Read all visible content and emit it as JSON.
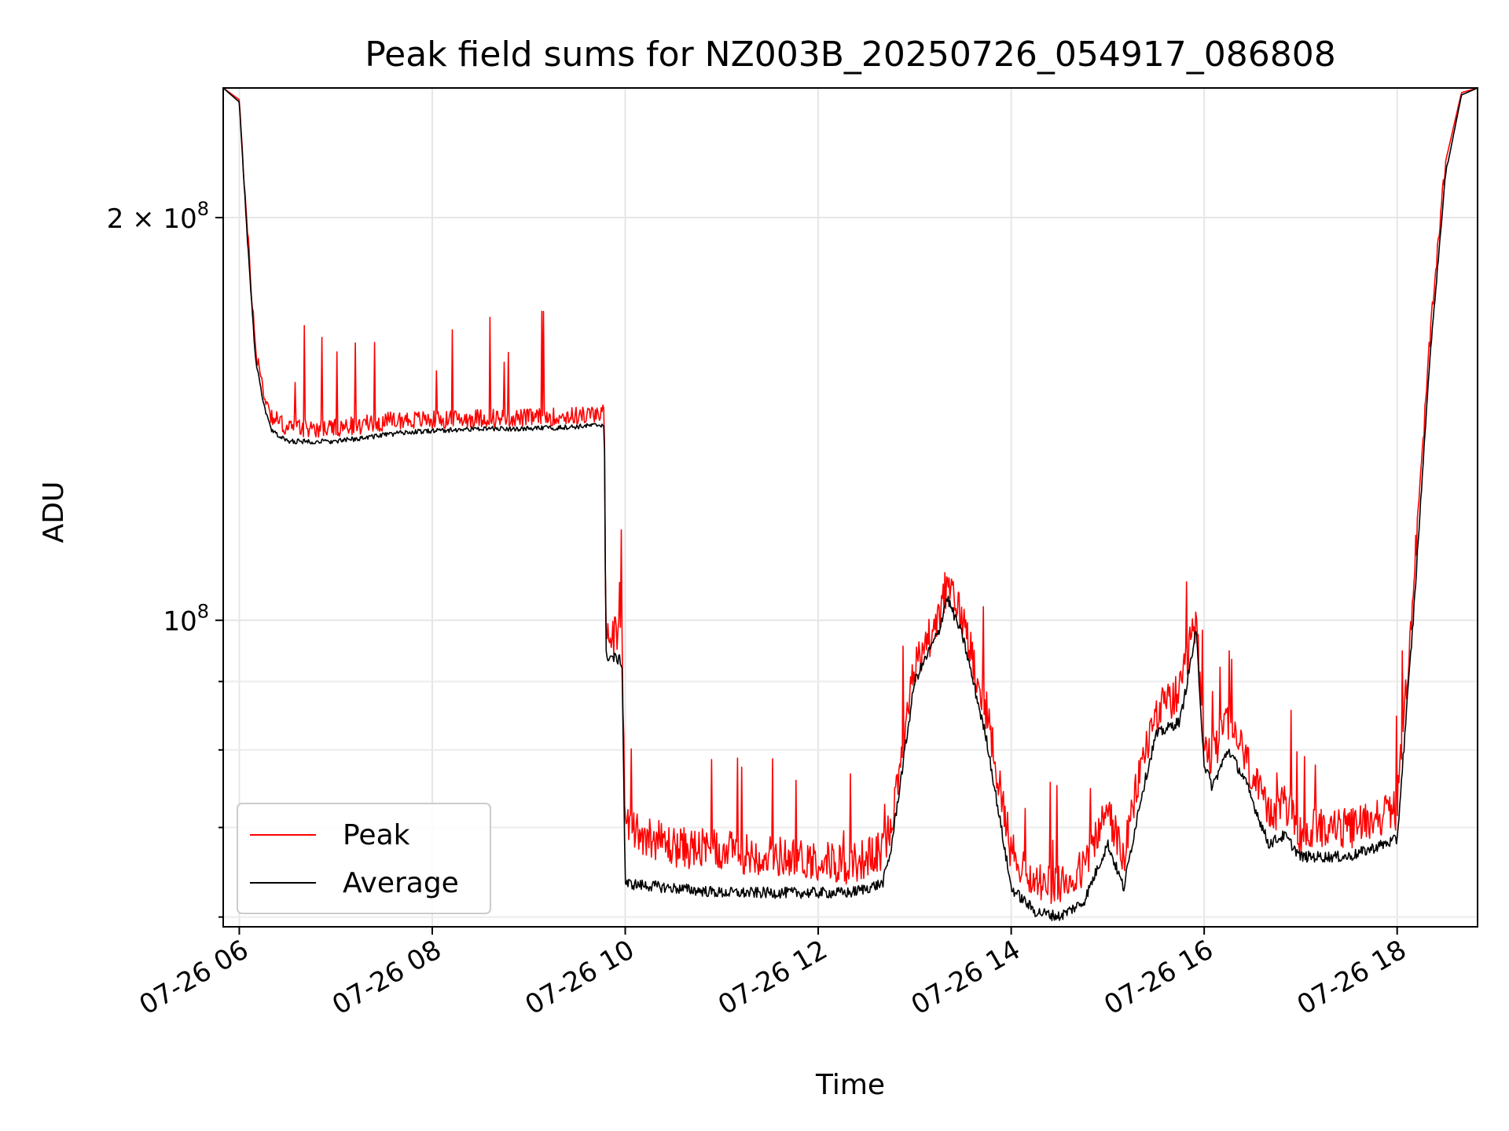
{
  "chart_data": {
    "type": "line",
    "title": "Peak field sums for NZ003B_20250726_054917_086808",
    "xlabel": "Time",
    "ylabel": "ADU",
    "y_scale": "log",
    "ylim": [
      59000000,
      250000000
    ],
    "xlim": [
      "2025-07-26T05:50",
      "2025-07-26T18:50"
    ],
    "grid": true,
    "legend_position": "lower-left",
    "x_ticks": [
      {
        "t": "2025-07-26T06:00",
        "label": "07-26 06"
      },
      {
        "t": "2025-07-26T08:00",
        "label": "07-26 08"
      },
      {
        "t": "2025-07-26T10:00",
        "label": "07-26 10"
      },
      {
        "t": "2025-07-26T12:00",
        "label": "07-26 12"
      },
      {
        "t": "2025-07-26T14:00",
        "label": "07-26 14"
      },
      {
        "t": "2025-07-26T16:00",
        "label": "07-26 16"
      },
      {
        "t": "2025-07-26T18:00",
        "label": "07-26 18"
      }
    ],
    "y_major_ticks": [
      {
        "value": 100000000,
        "base": "10",
        "exp": "8",
        "prefix": ""
      },
      {
        "value": 200000000,
        "base": "10",
        "exp": "8",
        "prefix": "2 × "
      }
    ],
    "y_minor_ticks": [
      60000000,
      70000000,
      80000000,
      90000000
    ],
    "series": [
      {
        "name": "Peak",
        "color": "#ff0000",
        "x": [
          "2025-07-26T05:50",
          "2025-07-26T06:00",
          "2025-07-26T06:05",
          "2025-07-26T06:10",
          "2025-07-26T06:15",
          "2025-07-26T06:20",
          "2025-07-26T06:30",
          "2025-07-26T07:00",
          "2025-07-26T07:20",
          "2025-07-26T07:40",
          "2025-07-26T08:00",
          "2025-07-26T08:30",
          "2025-07-26T09:00",
          "2025-07-26T09:30",
          "2025-07-26T09:47",
          "2025-07-26T09:48",
          "2025-07-26T09:55",
          "2025-07-26T09:58",
          "2025-07-26T10:00",
          "2025-07-26T10:30",
          "2025-07-26T11:00",
          "2025-07-26T11:30",
          "2025-07-26T12:00",
          "2025-07-26T12:20",
          "2025-07-26T12:40",
          "2025-07-26T12:45",
          "2025-07-26T12:50",
          "2025-07-26T13:00",
          "2025-07-26T13:15",
          "2025-07-26T13:20",
          "2025-07-26T13:30",
          "2025-07-26T13:45",
          "2025-07-26T14:00",
          "2025-07-26T14:15",
          "2025-07-26T14:30",
          "2025-07-26T14:45",
          "2025-07-26T15:00",
          "2025-07-26T15:10",
          "2025-07-26T15:20",
          "2025-07-26T15:30",
          "2025-07-26T15:45",
          "2025-07-26T15:55",
          "2025-07-26T16:00",
          "2025-07-26T16:05",
          "2025-07-26T16:15",
          "2025-07-26T16:25",
          "2025-07-26T16:40",
          "2025-07-26T16:50",
          "2025-07-26T17:00",
          "2025-07-26T17:15",
          "2025-07-26T17:30",
          "2025-07-26T17:45",
          "2025-07-26T18:00",
          "2025-07-26T18:10",
          "2025-07-26T18:20",
          "2025-07-26T18:30",
          "2025-07-26T18:40",
          "2025-07-26T18:50"
        ],
        "y": [
          250000000,
          245000000,
          195000000,
          160000000,
          148000000,
          142000000,
          139000000,
          139000000,
          140000000,
          141000000,
          141000000,
          141500000,
          141500000,
          142000000,
          142500000,
          98000000,
          97000000,
          96000000,
          70000000,
          67500000,
          67000000,
          66500000,
          66000000,
          65500000,
          67000000,
          70000000,
          77000000,
          92000000,
          100000000,
          106000000,
          100000000,
          85000000,
          67000000,
          63500000,
          63000000,
          65000000,
          72000000,
          66000000,
          77000000,
          85000000,
          88000000,
          100000000,
          80000000,
          79000000,
          84000000,
          79000000,
          71000000,
          73000000,
          69000000,
          70000000,
          69500000,
          71000000,
          72000000,
          105000000,
          160000000,
          220000000,
          248000000,
          250000000
        ]
      },
      {
        "name": "Average",
        "color": "#000000",
        "x": [
          "2025-07-26T05:50",
          "2025-07-26T06:00",
          "2025-07-26T06:05",
          "2025-07-26T06:10",
          "2025-07-26T06:15",
          "2025-07-26T06:20",
          "2025-07-26T06:30",
          "2025-07-26T07:00",
          "2025-07-26T07:20",
          "2025-07-26T07:40",
          "2025-07-26T08:00",
          "2025-07-26T08:30",
          "2025-07-26T09:00",
          "2025-07-26T09:30",
          "2025-07-26T09:47",
          "2025-07-26T09:48",
          "2025-07-26T09:55",
          "2025-07-26T09:58",
          "2025-07-26T10:00",
          "2025-07-26T10:30",
          "2025-07-26T11:00",
          "2025-07-26T11:30",
          "2025-07-26T12:00",
          "2025-07-26T12:20",
          "2025-07-26T12:40",
          "2025-07-26T12:45",
          "2025-07-26T12:50",
          "2025-07-26T13:00",
          "2025-07-26T13:15",
          "2025-07-26T13:20",
          "2025-07-26T13:30",
          "2025-07-26T13:45",
          "2025-07-26T14:00",
          "2025-07-26T14:15",
          "2025-07-26T14:30",
          "2025-07-26T14:45",
          "2025-07-26T15:00",
          "2025-07-26T15:10",
          "2025-07-26T15:20",
          "2025-07-26T15:30",
          "2025-07-26T15:45",
          "2025-07-26T15:55",
          "2025-07-26T16:00",
          "2025-07-26T16:05",
          "2025-07-26T16:15",
          "2025-07-26T16:25",
          "2025-07-26T16:40",
          "2025-07-26T16:50",
          "2025-07-26T17:00",
          "2025-07-26T17:15",
          "2025-07-26T17:30",
          "2025-07-26T17:45",
          "2025-07-26T18:00",
          "2025-07-26T18:10",
          "2025-07-26T18:20",
          "2025-07-26T18:30",
          "2025-07-26T18:40",
          "2025-07-26T18:50"
        ],
        "y": [
          250000000,
          244000000,
          193000000,
          157000000,
          145000000,
          138500000,
          136000000,
          136000000,
          137000000,
          138000000,
          138500000,
          139000000,
          139000000,
          139500000,
          140000000,
          94000000,
          93500000,
          93000000,
          63500000,
          63000000,
          62500000,
          62500000,
          62500000,
          62500000,
          63500000,
          67000000,
          74000000,
          90000000,
          98000000,
          104000000,
          97000000,
          81000000,
          63000000,
          60500000,
          60000000,
          61500000,
          68000000,
          63000000,
          73000000,
          82000000,
          84000000,
          98000000,
          78000000,
          75000000,
          80000000,
          76000000,
          68000000,
          69000000,
          66500000,
          66500000,
          66500000,
          67500000,
          68500000,
          100000000,
          155000000,
          215000000,
          247000000,
          250000000
        ]
      }
    ]
  }
}
